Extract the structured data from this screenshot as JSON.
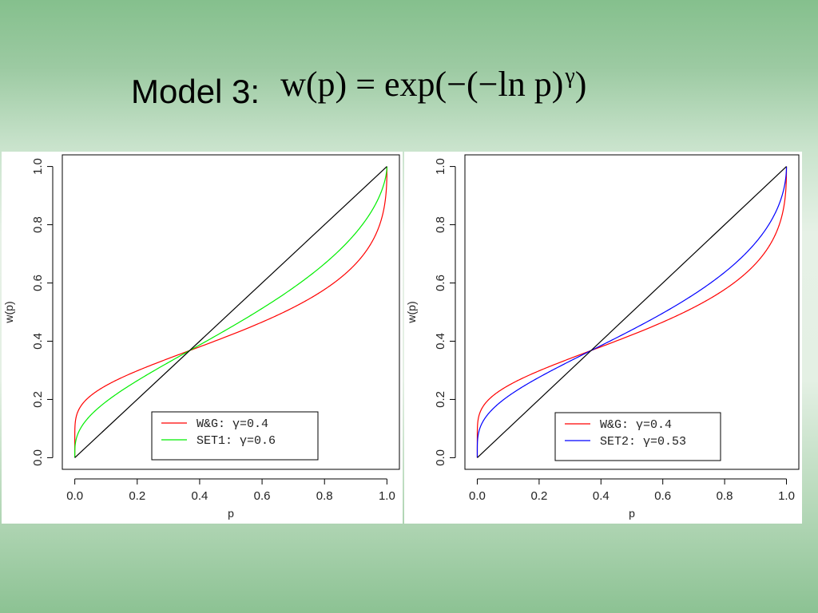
{
  "slide": {
    "title": "Model 3:",
    "formula": {
      "lhs": "w(p)",
      "equals": "=",
      "rhs": "exp(−(−ln p)",
      "exponent": "γ",
      "close": ")"
    }
  },
  "colors": {
    "background": "#8cc293",
    "identity_line": "#000000",
    "wg": "#ff0000",
    "set1": "#00ee00",
    "set2": "#0000ff"
  },
  "chart_data": [
    {
      "type": "line",
      "title": "",
      "xlabel": "p",
      "ylabel": "w(p)",
      "xlim": [
        0,
        1
      ],
      "ylim": [
        0,
        1
      ],
      "xticks": [
        "0.0",
        "0.2",
        "0.4",
        "0.6",
        "0.8",
        "1.0"
      ],
      "yticks": [
        "0.0",
        "0.2",
        "0.4",
        "0.6",
        "0.8",
        "1.0"
      ],
      "legend_position": "bottom-right",
      "function": "w(p) = exp(-(-ln p)^gamma)",
      "series": [
        {
          "name": "W&G: γ=0.4",
          "legend_label": "W&G: γ=0.4",
          "gamma": 0.4,
          "color": "#ff0000",
          "x": [
            0.001,
            0.01,
            0.05,
            0.1,
            0.2,
            0.3,
            0.368,
            0.5,
            0.6,
            0.7,
            0.8,
            0.9,
            0.95,
            0.99,
            1.0
          ],
          "values": [
            0.16,
            0.19,
            0.23,
            0.26,
            0.31,
            0.35,
            0.37,
            0.42,
            0.45,
            0.5,
            0.55,
            0.64,
            0.72,
            0.87,
            1.0
          ]
        },
        {
          "name": "SET1: γ=0.6",
          "legend_label": "SET1: γ=0.6",
          "gamma": 0.6,
          "color": "#00ee00",
          "x": [
            0.001,
            0.01,
            0.05,
            0.1,
            0.2,
            0.3,
            0.368,
            0.5,
            0.6,
            0.7,
            0.8,
            0.9,
            0.95,
            0.99,
            1.0
          ],
          "values": [
            0.05,
            0.1,
            0.17,
            0.22,
            0.29,
            0.34,
            0.37,
            0.44,
            0.5,
            0.56,
            0.64,
            0.75,
            0.83,
            0.94,
            1.0
          ]
        },
        {
          "name": "",
          "gamma": 1.0,
          "color": "#000000",
          "x": [
            0,
            1
          ],
          "values": [
            0,
            1
          ]
        }
      ]
    },
    {
      "type": "line",
      "title": "",
      "xlabel": "p",
      "ylabel": "w(p)",
      "xlim": [
        0,
        1
      ],
      "ylim": [
        0,
        1
      ],
      "xticks": [
        "0.0",
        "0.2",
        "0.4",
        "0.6",
        "0.8",
        "1.0"
      ],
      "yticks": [
        "0.0",
        "0.2",
        "0.4",
        "0.6",
        "0.8",
        "1.0"
      ],
      "legend_position": "bottom-right",
      "function": "w(p) = exp(-(-ln p)^gamma)",
      "series": [
        {
          "name": "W&G: γ=0.4",
          "legend_label": "W&G: γ=0.4",
          "gamma": 0.4,
          "color": "#ff0000",
          "x": [
            0.001,
            0.01,
            0.05,
            0.1,
            0.2,
            0.3,
            0.368,
            0.5,
            0.6,
            0.7,
            0.8,
            0.9,
            0.95,
            0.99,
            1.0
          ],
          "values": [
            0.16,
            0.19,
            0.23,
            0.26,
            0.31,
            0.35,
            0.37,
            0.42,
            0.45,
            0.5,
            0.55,
            0.64,
            0.72,
            0.87,
            1.0
          ]
        },
        {
          "name": "SET2: γ=0.53",
          "legend_label": "SET2: γ=0.53",
          "gamma": 0.53,
          "color": "#0000ff",
          "x": [
            0.001,
            0.01,
            0.05,
            0.1,
            0.2,
            0.3,
            0.368,
            0.5,
            0.6,
            0.7,
            0.8,
            0.9,
            0.95,
            0.99,
            1.0
          ],
          "values": [
            0.09,
            0.14,
            0.2,
            0.24,
            0.3,
            0.35,
            0.37,
            0.43,
            0.48,
            0.53,
            0.6,
            0.7,
            0.79,
            0.91,
            1.0
          ]
        },
        {
          "name": "",
          "gamma": 1.0,
          "color": "#000000",
          "x": [
            0,
            1
          ],
          "values": [
            0,
            1
          ]
        }
      ]
    }
  ]
}
